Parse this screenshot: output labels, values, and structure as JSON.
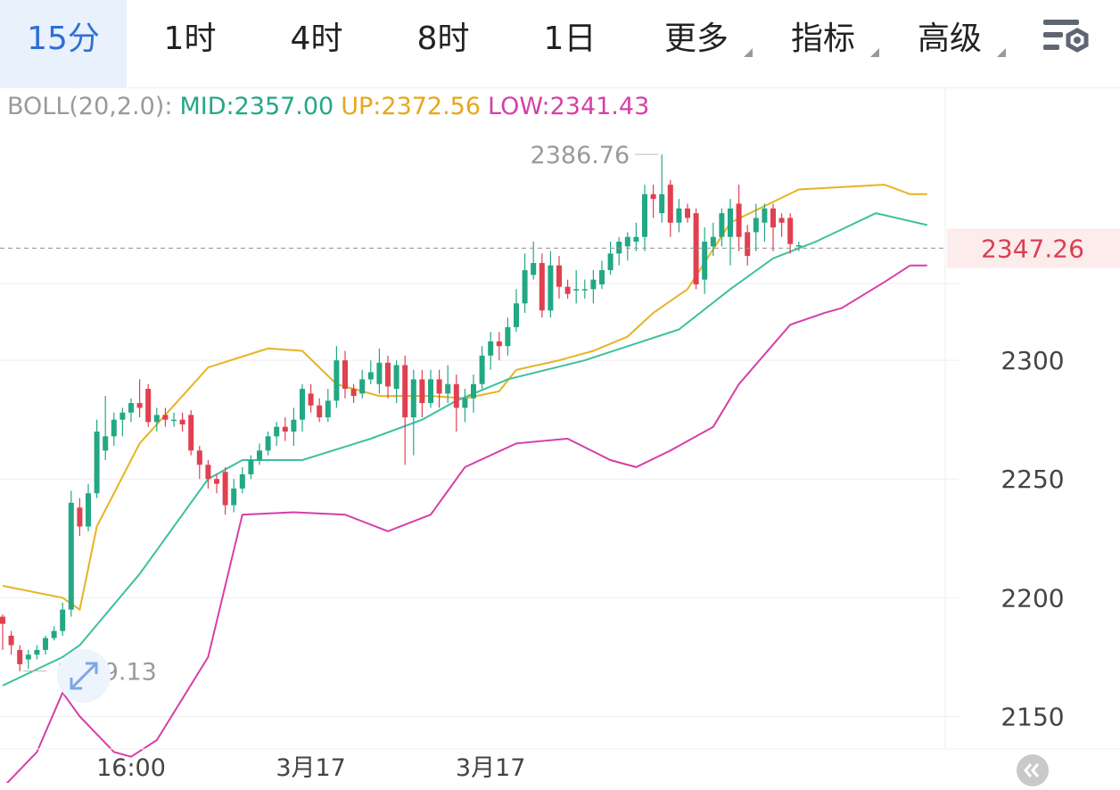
{
  "tabs": [
    {
      "label": "15分",
      "active": true
    },
    {
      "label": "1时"
    },
    {
      "label": "4时"
    },
    {
      "label": "8时"
    },
    {
      "label": "1日"
    },
    {
      "label": "更多",
      "dropdown": true
    },
    {
      "label": "指标",
      "dropdown": true
    },
    {
      "label": "高级",
      "dropdown": true
    }
  ],
  "icons": {
    "settings": "chart-settings-icon",
    "expand": "expand-arrows-icon",
    "scroll_left": "scroll-left-icon"
  },
  "legend": {
    "name": "BOLL(20,2.0):",
    "mid": "MID:2357.00",
    "up": "UP:2372.56",
    "low": "LOW:2341.43"
  },
  "colors": {
    "up_candle": "#22a884",
    "down_candle": "#e04050",
    "mid": "#3cc0a0",
    "upper": "#e6b422",
    "lower": "#d63fa8",
    "grid": "#eeeeee",
    "axis_text": "#444444",
    "active_tab": "#2f6fd6",
    "price_text": "#d9404f",
    "price_bg": "#fdecec"
  },
  "chart_data": {
    "type": "candlestick",
    "indicator": "BOLL(20,2.0)",
    "ylim": [
      2122,
      2415
    ],
    "yticks": [
      2150,
      2200,
      2250,
      2300
    ],
    "xticks": [
      {
        "label": "16:00",
        "index": 15
      },
      {
        "label": "3月17",
        "index": 36
      },
      {
        "label": "3月17",
        "index": 57
      }
    ],
    "current_price": "2347.26",
    "annotations": {
      "high": "2386.76",
      "low": "2169.13"
    },
    "candles": [
      [
        2192,
        2189,
        2193,
        2178
      ],
      [
        2184,
        2180,
        2186,
        2176
      ],
      [
        2178,
        2172,
        2180,
        2169
      ],
      [
        2174,
        2176,
        2178,
        2170
      ],
      [
        2176,
        2178,
        2180,
        2174
      ],
      [
        2178,
        2183,
        2184,
        2176
      ],
      [
        2183,
        2186,
        2188,
        2182
      ],
      [
        2186,
        2195,
        2198,
        2184
      ],
      [
        2195,
        2240,
        2245,
        2192
      ],
      [
        2238,
        2230,
        2242,
        2226
      ],
      [
        2230,
        2244,
        2248,
        2228
      ],
      [
        2244,
        2270,
        2275,
        2242
      ],
      [
        2262,
        2268,
        2285,
        2258
      ],
      [
        2268,
        2275,
        2278,
        2264
      ],
      [
        2275,
        2278,
        2280,
        2268
      ],
      [
        2278,
        2282,
        2284,
        2274
      ],
      [
        2282,
        2280,
        2292,
        2276
      ],
      [
        2288,
        2274,
        2290,
        2272
      ],
      [
        2274,
        2277,
        2280,
        2270
      ],
      [
        2277,
        2275,
        2280,
        2272
      ],
      [
        2275,
        2275,
        2278,
        2272
      ],
      [
        2275,
        2273,
        2278,
        2270
      ],
      [
        2277,
        2262,
        2279,
        2260
      ],
      [
        2262,
        2256,
        2264,
        2250
      ],
      [
        2256,
        2250,
        2258,
        2246
      ],
      [
        2250,
        2248,
        2252,
        2244
      ],
      [
        2253,
        2239,
        2255,
        2235
      ],
      [
        2239,
        2246,
        2250,
        2236
      ],
      [
        2246,
        2252,
        2255,
        2244
      ],
      [
        2252,
        2258,
        2260,
        2250
      ],
      [
        2258,
        2262,
        2265,
        2256
      ],
      [
        2262,
        2268,
        2270,
        2260
      ],
      [
        2268,
        2272,
        2274,
        2264
      ],
      [
        2272,
        2270,
        2276,
        2266
      ],
      [
        2270,
        2275,
        2280,
        2264
      ],
      [
        2275,
        2288,
        2290,
        2270
      ],
      [
        2286,
        2281,
        2290,
        2278
      ],
      [
        2281,
        2276,
        2284,
        2274
      ],
      [
        2276,
        2283,
        2288,
        2274
      ],
      [
        2283,
        2300,
        2306,
        2280
      ],
      [
        2300,
        2288,
        2304,
        2284
      ],
      [
        2288,
        2285,
        2290,
        2282
      ],
      [
        2286,
        2292,
        2296,
        2284
      ],
      [
        2292,
        2295,
        2300,
        2290
      ],
      [
        2290,
        2299,
        2305,
        2286
      ],
      [
        2299,
        2289,
        2302,
        2284
      ],
      [
        2288,
        2298,
        2300,
        2282
      ],
      [
        2298,
        2276,
        2302,
        2256
      ],
      [
        2276,
        2292,
        2296,
        2260
      ],
      [
        2292,
        2282,
        2296,
        2276
      ],
      [
        2282,
        2292,
        2296,
        2280
      ],
      [
        2292,
        2286,
        2296,
        2280
      ],
      [
        2286,
        2290,
        2298,
        2282
      ],
      [
        2290,
        2280,
        2294,
        2270
      ],
      [
        2280,
        2284,
        2288,
        2274
      ],
      [
        2284,
        2290,
        2294,
        2278
      ],
      [
        2290,
        2302,
        2306,
        2288
      ],
      [
        2302,
        2308,
        2312,
        2296
      ],
      [
        2308,
        2306,
        2312,
        2300
      ],
      [
        2306,
        2314,
        2318,
        2302
      ],
      [
        2314,
        2324,
        2330,
        2312
      ],
      [
        2324,
        2338,
        2345,
        2320
      ],
      [
        2336,
        2341,
        2350,
        2334
      ],
      [
        2341,
        2321,
        2345,
        2318
      ],
      [
        2321,
        2340,
        2346,
        2318
      ],
      [
        2340,
        2331,
        2344,
        2326
      ],
      [
        2331,
        2328,
        2334,
        2326
      ],
      [
        2330,
        2330,
        2338,
        2324
      ],
      [
        2330,
        2330,
        2334,
        2326
      ],
      [
        2330,
        2334,
        2338,
        2324
      ],
      [
        2332,
        2338,
        2342,
        2330
      ],
      [
        2338,
        2345,
        2350,
        2336
      ],
      [
        2345,
        2350,
        2352,
        2340
      ],
      [
        2348,
        2352,
        2354,
        2342
      ],
      [
        2350,
        2352,
        2358,
        2346
      ],
      [
        2352,
        2370,
        2374,
        2346
      ],
      [
        2370,
        2368,
        2374,
        2360
      ],
      [
        2362,
        2370,
        2386.76,
        2358
      ],
      [
        2374,
        2358,
        2376,
        2352
      ],
      [
        2358,
        2364,
        2368,
        2354
      ],
      [
        2364,
        2360,
        2366,
        2358
      ],
      [
        2362,
        2332,
        2364,
        2330
      ],
      [
        2334,
        2350,
        2356,
        2328
      ],
      [
        2348,
        2352,
        2358,
        2344
      ],
      [
        2352,
        2362,
        2364,
        2348
      ],
      [
        2352,
        2364,
        2368,
        2340
      ],
      [
        2366,
        2352,
        2374,
        2346
      ],
      [
        2354,
        2344,
        2357,
        2340
      ],
      [
        2354,
        2360,
        2366,
        2346
      ],
      [
        2358,
        2364,
        2366,
        2350
      ],
      [
        2364,
        2356,
        2366,
        2346
      ],
      [
        2360,
        2358,
        2362,
        2352
      ],
      [
        2360,
        2349,
        2362,
        2345
      ],
      [
        2348,
        2348.5,
        2350,
        2346
      ]
    ],
    "boll": {
      "upper": [
        [
          0,
          2205
        ],
        [
          7,
          2200
        ],
        [
          9,
          2195
        ],
        [
          11,
          2230
        ],
        [
          16,
          2265
        ],
        [
          24,
          2297
        ],
        [
          31,
          2305
        ],
        [
          35,
          2304
        ],
        [
          39,
          2290
        ],
        [
          44,
          2285
        ],
        [
          50,
          2285
        ],
        [
          54,
          2284
        ],
        [
          58,
          2287
        ],
        [
          60,
          2296
        ],
        [
          65,
          2300
        ],
        [
          69,
          2304
        ],
        [
          73,
          2310
        ],
        [
          76,
          2320
        ],
        [
          80,
          2330
        ],
        [
          85,
          2358
        ],
        [
          93,
          2372
        ],
        [
          103,
          2374
        ],
        [
          106,
          2370
        ],
        [
          108,
          2370
        ]
      ],
      "mid": [
        [
          0,
          2163
        ],
        [
          7,
          2175
        ],
        [
          9,
          2180
        ],
        [
          16,
          2210
        ],
        [
          24,
          2250
        ],
        [
          28,
          2258
        ],
        [
          35,
          2258
        ],
        [
          43,
          2267
        ],
        [
          49,
          2275
        ],
        [
          53,
          2283
        ],
        [
          59,
          2292
        ],
        [
          68,
          2300
        ],
        [
          79,
          2313
        ],
        [
          85,
          2330
        ],
        [
          90,
          2343
        ],
        [
          95,
          2350
        ],
        [
          102,
          2362
        ],
        [
          108,
          2357
        ]
      ],
      "lower": [
        [
          0,
          2120
        ],
        [
          4,
          2135
        ],
        [
          7,
          2160
        ],
        [
          9,
          2150
        ],
        [
          13,
          2135
        ],
        [
          15,
          2133
        ],
        [
          18,
          2140
        ],
        [
          24,
          2175
        ],
        [
          28,
          2235
        ],
        [
          34,
          2236
        ],
        [
          40,
          2235
        ],
        [
          45,
          2228
        ],
        [
          50,
          2235
        ],
        [
          54,
          2255
        ],
        [
          60,
          2265
        ],
        [
          66,
          2267
        ],
        [
          71,
          2258
        ],
        [
          74,
          2255
        ],
        [
          78,
          2262
        ],
        [
          83,
          2272
        ],
        [
          86,
          2290
        ],
        [
          92,
          2315
        ],
        [
          96,
          2320
        ],
        [
          98,
          2322
        ],
        [
          103,
          2333
        ],
        [
          106,
          2340
        ],
        [
          108,
          2340
        ]
      ]
    }
  }
}
